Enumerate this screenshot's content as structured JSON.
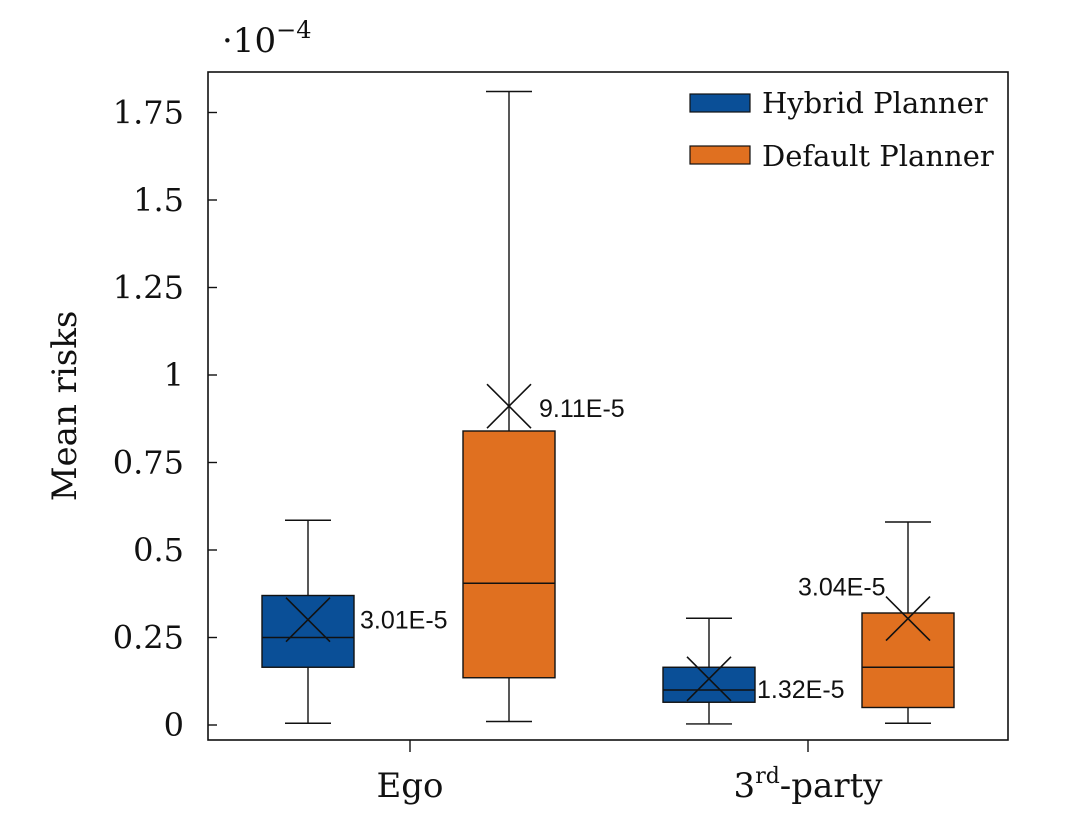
{
  "chart_data": {
    "type": "box",
    "ylabel": "Mean risks",
    "scale_prefix": "·10",
    "scale_exponent": "−4",
    "ylim": [
      0,
      1.85
    ],
    "yticks": [
      {
        "value": 0,
        "label": "0"
      },
      {
        "value": 0.25,
        "label": "0.25"
      },
      {
        "value": 0.5,
        "label": "0.5"
      },
      {
        "value": 0.75,
        "label": "0.75"
      },
      {
        "value": 1,
        "label": "1"
      },
      {
        "value": 1.25,
        "label": "1.25"
      },
      {
        "value": 1.5,
        "label": "1.5"
      },
      {
        "value": 1.75,
        "label": "1.75"
      }
    ],
    "categories": [
      {
        "label": "Ego",
        "sup": "",
        "suffix": ""
      },
      {
        "label": "3",
        "sup": "rd",
        "suffix": "-party"
      }
    ],
    "series": [
      {
        "name": "Hybrid Planner",
        "color": "#0a4f97",
        "boxes": [
          {
            "min": 0.005,
            "q1": 0.165,
            "median": 0.25,
            "q3": 0.37,
            "max": 0.585,
            "mean": 0.301,
            "mean_label": "3.01E-5"
          },
          {
            "min": 0.003,
            "q1": 0.065,
            "median": 0.1,
            "q3": 0.165,
            "max": 0.305,
            "mean": 0.132,
            "mean_label": "1.32E-5"
          }
        ]
      },
      {
        "name": "Default Planner",
        "color": "#e07020",
        "boxes": [
          {
            "min": 0.01,
            "q1": 0.135,
            "median": 0.405,
            "q3": 0.84,
            "max": 1.81,
            "mean": 0.911,
            "mean_label": "9.11E-5"
          },
          {
            "min": 0.005,
            "q1": 0.05,
            "median": 0.165,
            "q3": 0.32,
            "max": 0.58,
            "mean": 0.304,
            "mean_label": "3.04E-5"
          }
        ]
      }
    ],
    "legend": {
      "position": "top-right",
      "entries": [
        "Hybrid Planner",
        "Default Planner"
      ]
    }
  }
}
